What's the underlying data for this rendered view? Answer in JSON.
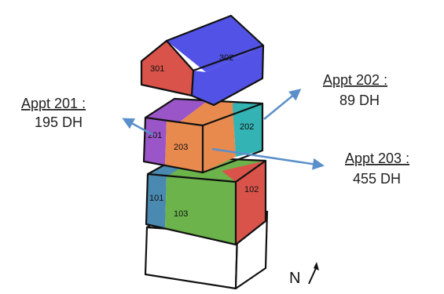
{
  "units": [
    {
      "id": "301",
      "label": "301"
    },
    {
      "id": "302",
      "label": "302"
    },
    {
      "id": "201",
      "label": "201"
    },
    {
      "id": "202",
      "label": "202"
    },
    {
      "id": "203",
      "label": "203"
    },
    {
      "id": "101",
      "label": "101"
    },
    {
      "id": "102",
      "label": "102"
    },
    {
      "id": "103",
      "label": "103"
    }
  ],
  "callouts": {
    "appt201": {
      "title": "Appt 201 :",
      "value": "195 DH"
    },
    "appt202": {
      "title": "Appt 202 :",
      "value": "89 DH"
    },
    "appt203": {
      "title": "Appt 203 :",
      "value": "455 DH"
    }
  },
  "north": {
    "label": "N"
  },
  "colors": {
    "red": "#d9534a",
    "blue": "#5252e6",
    "purple": "#9a55c8",
    "teal": "#33b3b3",
    "orange": "#e88a4d",
    "steel_blue": "#4a8ab0",
    "green": "#6bb34a",
    "arrow": "#5b8fc9",
    "outline": "#111111"
  }
}
